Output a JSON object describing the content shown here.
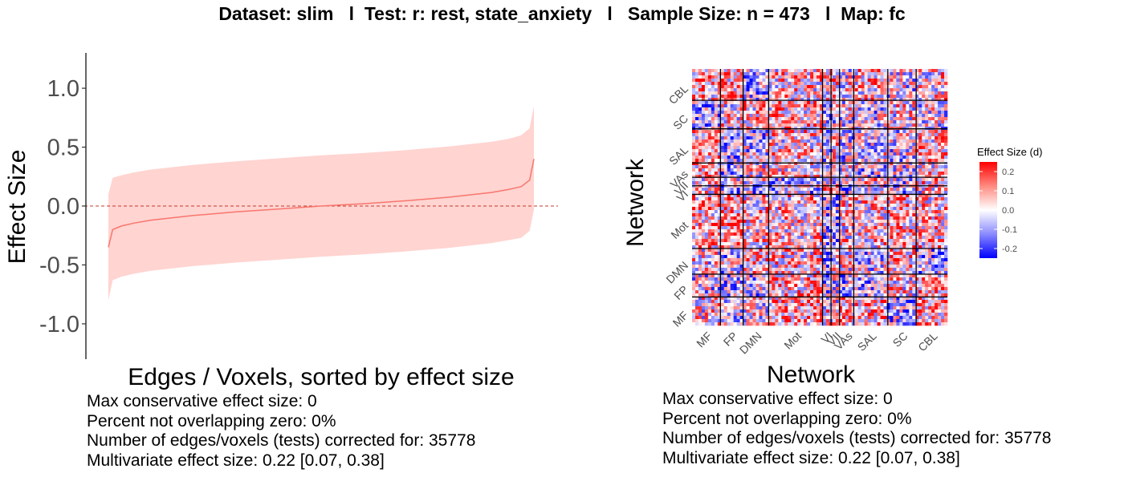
{
  "title": "Dataset: slim   l  Test: r: rest, state_anxiety   l   Sample Size: n = 473   l  Map: fc",
  "colors": {
    "ribbon": "#ffd4d1",
    "line": "#f8766d",
    "zero_line": "#c0392b",
    "heat_low": "#0000ff",
    "heat_mid": "#ffffff",
    "heat_high": "#ff0000"
  },
  "chart_data": [
    {
      "type": "area",
      "title": "",
      "xlabel": "Edges / Voxels, sorted by effect size",
      "ylabel": "Effect Size",
      "ylim": [
        -1.3,
        1.3
      ],
      "yticks": [
        1.0,
        0.5,
        0.0,
        -0.5,
        -1.0
      ],
      "ytick_labels": [
        "1.0",
        "0.5",
        "0.0",
        "-0.5",
        "-1.0"
      ],
      "reference_line_y": 0,
      "n_points": 35778,
      "series": [
        {
          "x": [
            0,
            0.01,
            0.03,
            0.06,
            0.1,
            0.2,
            0.3,
            0.4,
            0.5,
            0.6,
            0.7,
            0.8,
            0.9,
            0.94,
            0.97,
            0.99,
            1.0
          ],
          "y": [
            -0.35,
            -0.2,
            -0.17,
            -0.145,
            -0.12,
            -0.08,
            -0.05,
            -0.025,
            0.0,
            0.02,
            0.045,
            0.075,
            0.115,
            0.14,
            0.165,
            0.22,
            0.4
          ],
          "lower": [
            -0.8,
            -0.63,
            -0.6,
            -0.575,
            -0.55,
            -0.51,
            -0.48,
            -0.455,
            -0.43,
            -0.41,
            -0.385,
            -0.355,
            -0.315,
            -0.29,
            -0.27,
            -0.21,
            -0.03
          ],
          "upper": [
            0.1,
            0.24,
            0.26,
            0.285,
            0.31,
            0.35,
            0.38,
            0.405,
            0.43,
            0.45,
            0.475,
            0.505,
            0.545,
            0.57,
            0.6,
            0.66,
            0.85
          ]
        }
      ],
      "stats": [
        "Max conservative effect size: 0",
        "Percent not overlapping zero: 0%",
        "Number of edges/voxels (tests) corrected for: 35778",
        "Multivariate effect size: 0.22 [0.07, 0.38]"
      ]
    },
    {
      "type": "heatmap",
      "title": "",
      "xlabel": "Network",
      "ylabel": "Network",
      "x_categories": [
        "MF",
        "FP",
        "DMN",
        "Mot",
        "VI",
        "VII",
        "VAs",
        "SAL",
        "SC",
        "CBL"
      ],
      "y_categories": [
        "MF",
        "FP",
        "DMN",
        "Mot",
        "VI",
        "VII",
        "VAs",
        "SAL",
        "SC",
        "CBL"
      ],
      "network_fractions": [
        0.1,
        0.08,
        0.09,
        0.19,
        0.03,
        0.03,
        0.05,
        0.12,
        0.1,
        0.11
      ],
      "legend_title": "Effect Size (d)",
      "legend_ticks": [
        "0.2",
        "0.1",
        "0.0",
        "-0.1",
        "-0.2"
      ],
      "legend_values": [
        0.2,
        0.1,
        0.0,
        -0.1,
        -0.2
      ],
      "color_range": [
        -0.25,
        0.25
      ],
      "stats": [
        "Max conservative effect size: 0",
        "Percent not overlapping zero: 0%",
        "Number of edges/voxels (tests) corrected for: 35778",
        "Multivariate effect size: 0.22 [0.07, 0.38]"
      ]
    }
  ]
}
